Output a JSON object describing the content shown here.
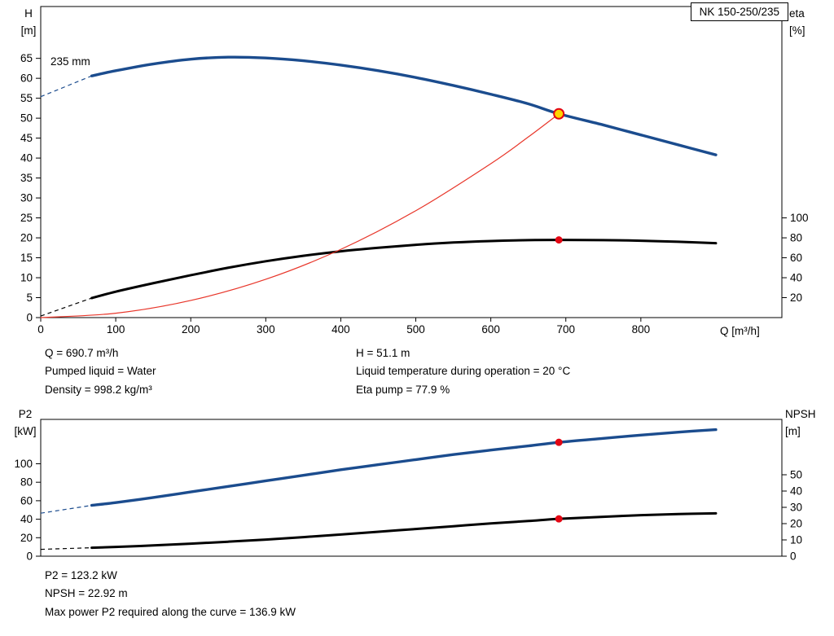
{
  "colors": {
    "curve_blue": "#1b4c8e",
    "curve_black": "#000000",
    "system_red": "#e8362a",
    "marker_red": "#e30613",
    "marker_yellow": "#ffd500",
    "axis": "#000000"
  },
  "results_top": {
    "col1": [
      "Q = 690.7 m³/h",
      "Pumped liquid = Water",
      "Density = 998.2 kg/m³"
    ],
    "col2": [
      "H = 51.1 m",
      "Liquid temperature during operation = 20 °C",
      "Eta pump = 77.9 %"
    ]
  },
  "results_bottom": [
    "P2 = 123.2 kW",
    "NPSH = 22.92 m",
    "Max power P2 required along the curve = 136.9 kW"
  ],
  "chart_data": [
    {
      "type": "line",
      "name": "head-efficiency-chart",
      "title": "NK 150-250/235",
      "title_box": "NK 150-250/235",
      "impeller_label": "235 mm",
      "xlabel": "Q [m³/h]",
      "x_axis_label": "Q [m³/h]",
      "ylabel_left": "H [m]",
      "ylabel_right": "eta [%]",
      "left_axis_lines": [
        "H",
        "[m]"
      ],
      "right_axis_lines": [
        "eta",
        "[%]"
      ],
      "xlim": [
        0,
        988
      ],
      "x_ticks": [
        0,
        100,
        200,
        300,
        400,
        500,
        600,
        700,
        800
      ],
      "ylim_left": [
        0,
        78
      ],
      "y_ticks_left": [
        0,
        5,
        10,
        15,
        20,
        25,
        30,
        35,
        40,
        45,
        50,
        55,
        60,
        65
      ],
      "ylim_right": [
        0,
        312
      ],
      "y_ticks_right": [
        20,
        40,
        60,
        80,
        100
      ],
      "grid": false,
      "series": [
        {
          "name": "head-curve",
          "label": "235 mm",
          "axis": "left",
          "color": "#1b4c8e",
          "width": 3.4,
          "dash_lead": [
            [
              0,
              55.4
            ],
            [
              68,
              60.6
            ]
          ],
          "x": [
            68,
            100,
            150,
            200,
            250,
            300,
            350,
            400,
            450,
            500,
            550,
            600,
            650,
            690.7,
            750,
            800,
            850,
            900
          ],
          "y": [
            60.6,
            61.9,
            63.6,
            64.8,
            65.3,
            65.1,
            64.4,
            63.3,
            61.9,
            60.2,
            58.2,
            56.0,
            53.6,
            51.1,
            48.3,
            45.8,
            43.3,
            40.8
          ]
        },
        {
          "name": "efficiency-curve",
          "axis": "right",
          "color": "#000000",
          "width": 3,
          "dash_lead": [
            [
              0,
              1.6
            ],
            [
              68,
              19.6
            ]
          ],
          "x": [
            68,
            100,
            150,
            200,
            250,
            300,
            350,
            400,
            450,
            500,
            550,
            600,
            650,
            690.7,
            750,
            800,
            850,
            900
          ],
          "y": [
            19.6,
            26,
            34.5,
            42.5,
            50,
            56.5,
            62,
            66.5,
            70,
            73,
            75.3,
            76.8,
            77.7,
            77.9,
            77.7,
            77.1,
            76.1,
            74.6
          ]
        },
        {
          "name": "system-curve",
          "axis": "left",
          "color": "#e8362a",
          "width": 1.2,
          "x": [
            0,
            100,
            200,
            300,
            400,
            500,
            600,
            650,
            690.7
          ],
          "y": [
            0,
            1.1,
            4.3,
            9.6,
            17.1,
            26.8,
            38.6,
            45.3,
            51.1
          ]
        }
      ],
      "markers": [
        {
          "name": "duty-point",
          "axis": "left",
          "x": 690.7,
          "y": 51.1,
          "style": "ring"
        },
        {
          "name": "efficiency-point",
          "axis": "right",
          "x": 690.7,
          "y": 77.9,
          "style": "dot"
        }
      ]
    },
    {
      "type": "line",
      "name": "power-npsh-chart",
      "title": "",
      "xlabel": "",
      "ylabel_left": "P2 [kW]",
      "ylabel_right": "NPSH [m]",
      "left_axis_lines": [
        "P2",
        "[kW]"
      ],
      "right_axis_lines": [
        "NPSH",
        "[m]"
      ],
      "xlim": [
        0,
        988
      ],
      "x_ticks": [],
      "ylim_left": [
        0,
        148
      ],
      "y_ticks_left": [
        0,
        20,
        40,
        60,
        80,
        100
      ],
      "ylim_right": [
        0,
        84
      ],
      "y_ticks_right": [
        0,
        10,
        20,
        30,
        40,
        50
      ],
      "grid": false,
      "series": [
        {
          "name": "p2-curve",
          "axis": "left",
          "color": "#1b4c8e",
          "width": 3.4,
          "dash_lead": [
            [
              0,
              46.5
            ],
            [
              68,
              55
            ]
          ],
          "x": [
            68,
            100,
            150,
            200,
            250,
            300,
            350,
            400,
            450,
            500,
            550,
            600,
            650,
            690.7,
            750,
            800,
            850,
            900
          ],
          "y": [
            55,
            58,
            63.5,
            69.5,
            75.5,
            81.5,
            87.5,
            93.5,
            99,
            104.5,
            110,
            114.8,
            119.3,
            123.2,
            127.5,
            131,
            134.2,
            136.9
          ]
        },
        {
          "name": "npsh-curve",
          "axis": "right",
          "color": "#000000",
          "width": 3,
          "dash_lead": [
            [
              0,
              4.2
            ],
            [
              68,
              5.2
            ]
          ],
          "x": [
            68,
            100,
            150,
            200,
            250,
            300,
            350,
            400,
            450,
            500,
            550,
            600,
            650,
            690.7,
            750,
            800,
            850,
            900
          ],
          "y": [
            5.2,
            5.7,
            6.6,
            7.7,
            8.9,
            10.2,
            11.7,
            13.3,
            15,
            16.7,
            18.4,
            20.1,
            21.6,
            22.92,
            24.2,
            25.2,
            25.9,
            26.3
          ]
        }
      ],
      "markers": [
        {
          "name": "p2-point",
          "axis": "left",
          "x": 690.7,
          "y": 123.2,
          "style": "dot"
        },
        {
          "name": "npsh-point",
          "axis": "right",
          "x": 690.7,
          "y": 22.92,
          "style": "dot"
        }
      ]
    }
  ]
}
